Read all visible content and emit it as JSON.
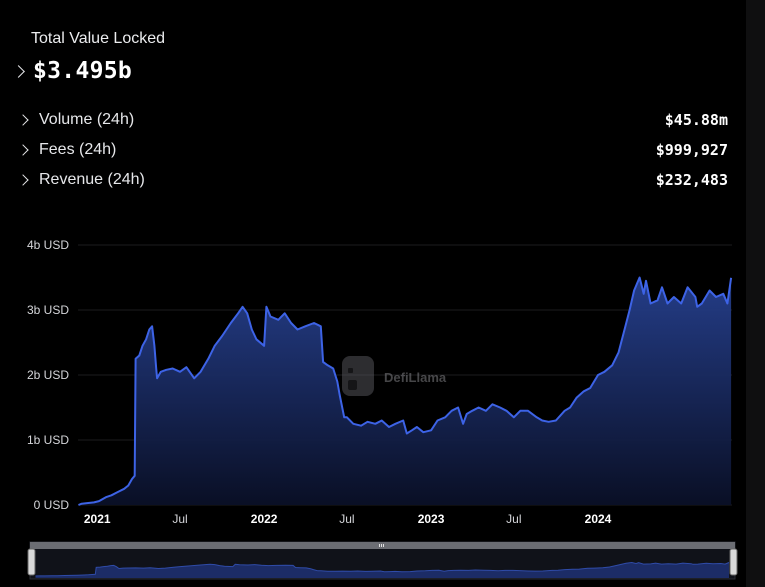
{
  "tvl": {
    "label": "Total Value Locked",
    "value": "$3.495b"
  },
  "stats": [
    {
      "label": "Volume (24h)",
      "value": "$45.88m"
    },
    {
      "label": "Fees (24h)",
      "value": "$999,927"
    },
    {
      "label": "Revenue (24h)",
      "value": "$232,483"
    }
  ],
  "watermark": "DefiLlama",
  "colors": {
    "line": "#3d63e6",
    "area_top": "#243c8e",
    "background": "#000000",
    "grid": "#1c1c1e",
    "axis_text": "#d5d6da"
  },
  "icons": {
    "expand": "chevron-right-icon",
    "watermark_logo": "llama-logo-icon",
    "slider_grip": "grip-icon"
  },
  "chart_data": {
    "type": "area",
    "title": "",
    "xlabel": "",
    "ylabel": "",
    "ylim": [
      0,
      4
    ],
    "xlim": [
      "2020-11-20",
      "2024-10-20"
    ],
    "y_ticks": [
      {
        "value": 0,
        "label": "0 USD"
      },
      {
        "value": 1,
        "label": "1b USD"
      },
      {
        "value": 2,
        "label": "2b USD"
      },
      {
        "value": 3,
        "label": "3b USD"
      },
      {
        "value": 4,
        "label": "4b USD"
      }
    ],
    "x_ticks": [
      {
        "date": "2021-01-01",
        "label": "2021",
        "bold": true
      },
      {
        "date": "2021-07-01",
        "label": "Jul",
        "bold": false
      },
      {
        "date": "2022-01-01",
        "label": "2022",
        "bold": true
      },
      {
        "date": "2022-07-01",
        "label": "Jul",
        "bold": false
      },
      {
        "date": "2023-01-01",
        "label": "2023",
        "bold": true
      },
      {
        "date": "2023-07-01",
        "label": "Jul",
        "bold": false
      },
      {
        "date": "2024-01-01",
        "label": "2024",
        "bold": true
      }
    ],
    "grid": true,
    "legend": "none",
    "series": [
      {
        "unit": "billion USD",
        "points": [
          [
            "2020-11-21",
            0.0
          ],
          [
            "2020-11-28",
            0.02
          ],
          [
            "2020-12-10",
            0.03
          ],
          [
            "2020-12-25",
            0.04
          ],
          [
            "2021-01-05",
            0.06
          ],
          [
            "2021-01-20",
            0.12
          ],
          [
            "2021-02-01",
            0.15
          ],
          [
            "2021-02-15",
            0.2
          ],
          [
            "2021-03-01",
            0.25
          ],
          [
            "2021-03-10",
            0.3
          ],
          [
            "2021-03-18",
            0.4
          ],
          [
            "2021-03-24",
            0.45
          ],
          [
            "2021-03-26",
            2.25
          ],
          [
            "2021-04-03",
            2.3
          ],
          [
            "2021-04-10",
            2.45
          ],
          [
            "2021-04-18",
            2.55
          ],
          [
            "2021-04-25",
            2.7
          ],
          [
            "2021-05-01",
            2.75
          ],
          [
            "2021-05-06",
            2.45
          ],
          [
            "2021-05-10",
            2.1
          ],
          [
            "2021-05-12",
            1.95
          ],
          [
            "2021-05-20",
            2.05
          ],
          [
            "2021-06-01",
            2.08
          ],
          [
            "2021-06-15",
            2.1
          ],
          [
            "2021-07-01",
            2.05
          ],
          [
            "2021-07-15",
            2.12
          ],
          [
            "2021-08-01",
            1.95
          ],
          [
            "2021-08-15",
            2.05
          ],
          [
            "2021-09-01",
            2.25
          ],
          [
            "2021-09-15",
            2.45
          ],
          [
            "2021-10-01",
            2.6
          ],
          [
            "2021-10-20",
            2.8
          ],
          [
            "2021-11-05",
            2.95
          ],
          [
            "2021-11-15",
            3.05
          ],
          [
            "2021-11-25",
            2.95
          ],
          [
            "2021-12-05",
            2.7
          ],
          [
            "2021-12-15",
            2.55
          ],
          [
            "2022-01-01",
            2.45
          ],
          [
            "2022-01-06",
            3.05
          ],
          [
            "2022-01-15",
            2.9
          ],
          [
            "2022-02-01",
            2.85
          ],
          [
            "2022-02-15",
            2.95
          ],
          [
            "2022-03-01",
            2.8
          ],
          [
            "2022-03-15",
            2.7
          ],
          [
            "2022-04-01",
            2.75
          ],
          [
            "2022-04-20",
            2.8
          ],
          [
            "2022-05-05",
            2.75
          ],
          [
            "2022-05-10",
            2.2
          ],
          [
            "2022-05-20",
            2.15
          ],
          [
            "2022-06-01",
            2.1
          ],
          [
            "2022-06-10",
            1.9
          ],
          [
            "2022-06-15",
            1.7
          ],
          [
            "2022-06-25",
            1.35
          ],
          [
            "2022-07-01",
            1.35
          ],
          [
            "2022-07-15",
            1.25
          ],
          [
            "2022-08-01",
            1.22
          ],
          [
            "2022-08-15",
            1.28
          ],
          [
            "2022-09-01",
            1.25
          ],
          [
            "2022-09-15",
            1.3
          ],
          [
            "2022-10-01",
            1.2
          ],
          [
            "2022-10-15",
            1.25
          ],
          [
            "2022-11-01",
            1.3
          ],
          [
            "2022-11-09",
            1.1
          ],
          [
            "2022-11-20",
            1.15
          ],
          [
            "2022-12-01",
            1.2
          ],
          [
            "2022-12-15",
            1.12
          ],
          [
            "2023-01-01",
            1.15
          ],
          [
            "2023-01-15",
            1.3
          ],
          [
            "2023-02-01",
            1.35
          ],
          [
            "2023-02-15",
            1.45
          ],
          [
            "2023-03-01",
            1.5
          ],
          [
            "2023-03-12",
            1.25
          ],
          [
            "2023-03-20",
            1.4
          ],
          [
            "2023-04-01",
            1.45
          ],
          [
            "2023-04-15",
            1.5
          ],
          [
            "2023-05-01",
            1.45
          ],
          [
            "2023-05-15",
            1.55
          ],
          [
            "2023-06-01",
            1.5
          ],
          [
            "2023-06-15",
            1.45
          ],
          [
            "2023-07-01",
            1.35
          ],
          [
            "2023-07-15",
            1.45
          ],
          [
            "2023-08-01",
            1.45
          ],
          [
            "2023-08-20",
            1.35
          ],
          [
            "2023-09-01",
            1.3
          ],
          [
            "2023-09-15",
            1.28
          ],
          [
            "2023-10-01",
            1.3
          ],
          [
            "2023-10-20",
            1.45
          ],
          [
            "2023-11-01",
            1.5
          ],
          [
            "2023-11-15",
            1.65
          ],
          [
            "2023-12-01",
            1.75
          ],
          [
            "2023-12-15",
            1.8
          ],
          [
            "2024-01-01",
            2.0
          ],
          [
            "2024-01-15",
            2.05
          ],
          [
            "2024-02-01",
            2.15
          ],
          [
            "2024-02-15",
            2.35
          ],
          [
            "2024-03-01",
            2.75
          ],
          [
            "2024-03-10",
            3.0
          ],
          [
            "2024-03-20",
            3.3
          ],
          [
            "2024-04-01",
            3.5
          ],
          [
            "2024-04-10",
            3.25
          ],
          [
            "2024-04-15",
            3.45
          ],
          [
            "2024-04-25",
            3.1
          ],
          [
            "2024-05-10",
            3.15
          ],
          [
            "2024-05-20",
            3.35
          ],
          [
            "2024-06-01",
            3.1
          ],
          [
            "2024-06-15",
            3.2
          ],
          [
            "2024-07-01",
            3.1
          ],
          [
            "2024-07-15",
            3.35
          ],
          [
            "2024-08-01",
            3.2
          ],
          [
            "2024-08-05",
            3.05
          ],
          [
            "2024-08-15",
            3.1
          ],
          [
            "2024-09-01",
            3.3
          ],
          [
            "2024-09-15",
            3.2
          ],
          [
            "2024-10-01",
            3.25
          ],
          [
            "2024-10-10",
            3.1
          ],
          [
            "2024-10-18",
            3.495
          ]
        ]
      }
    ]
  }
}
